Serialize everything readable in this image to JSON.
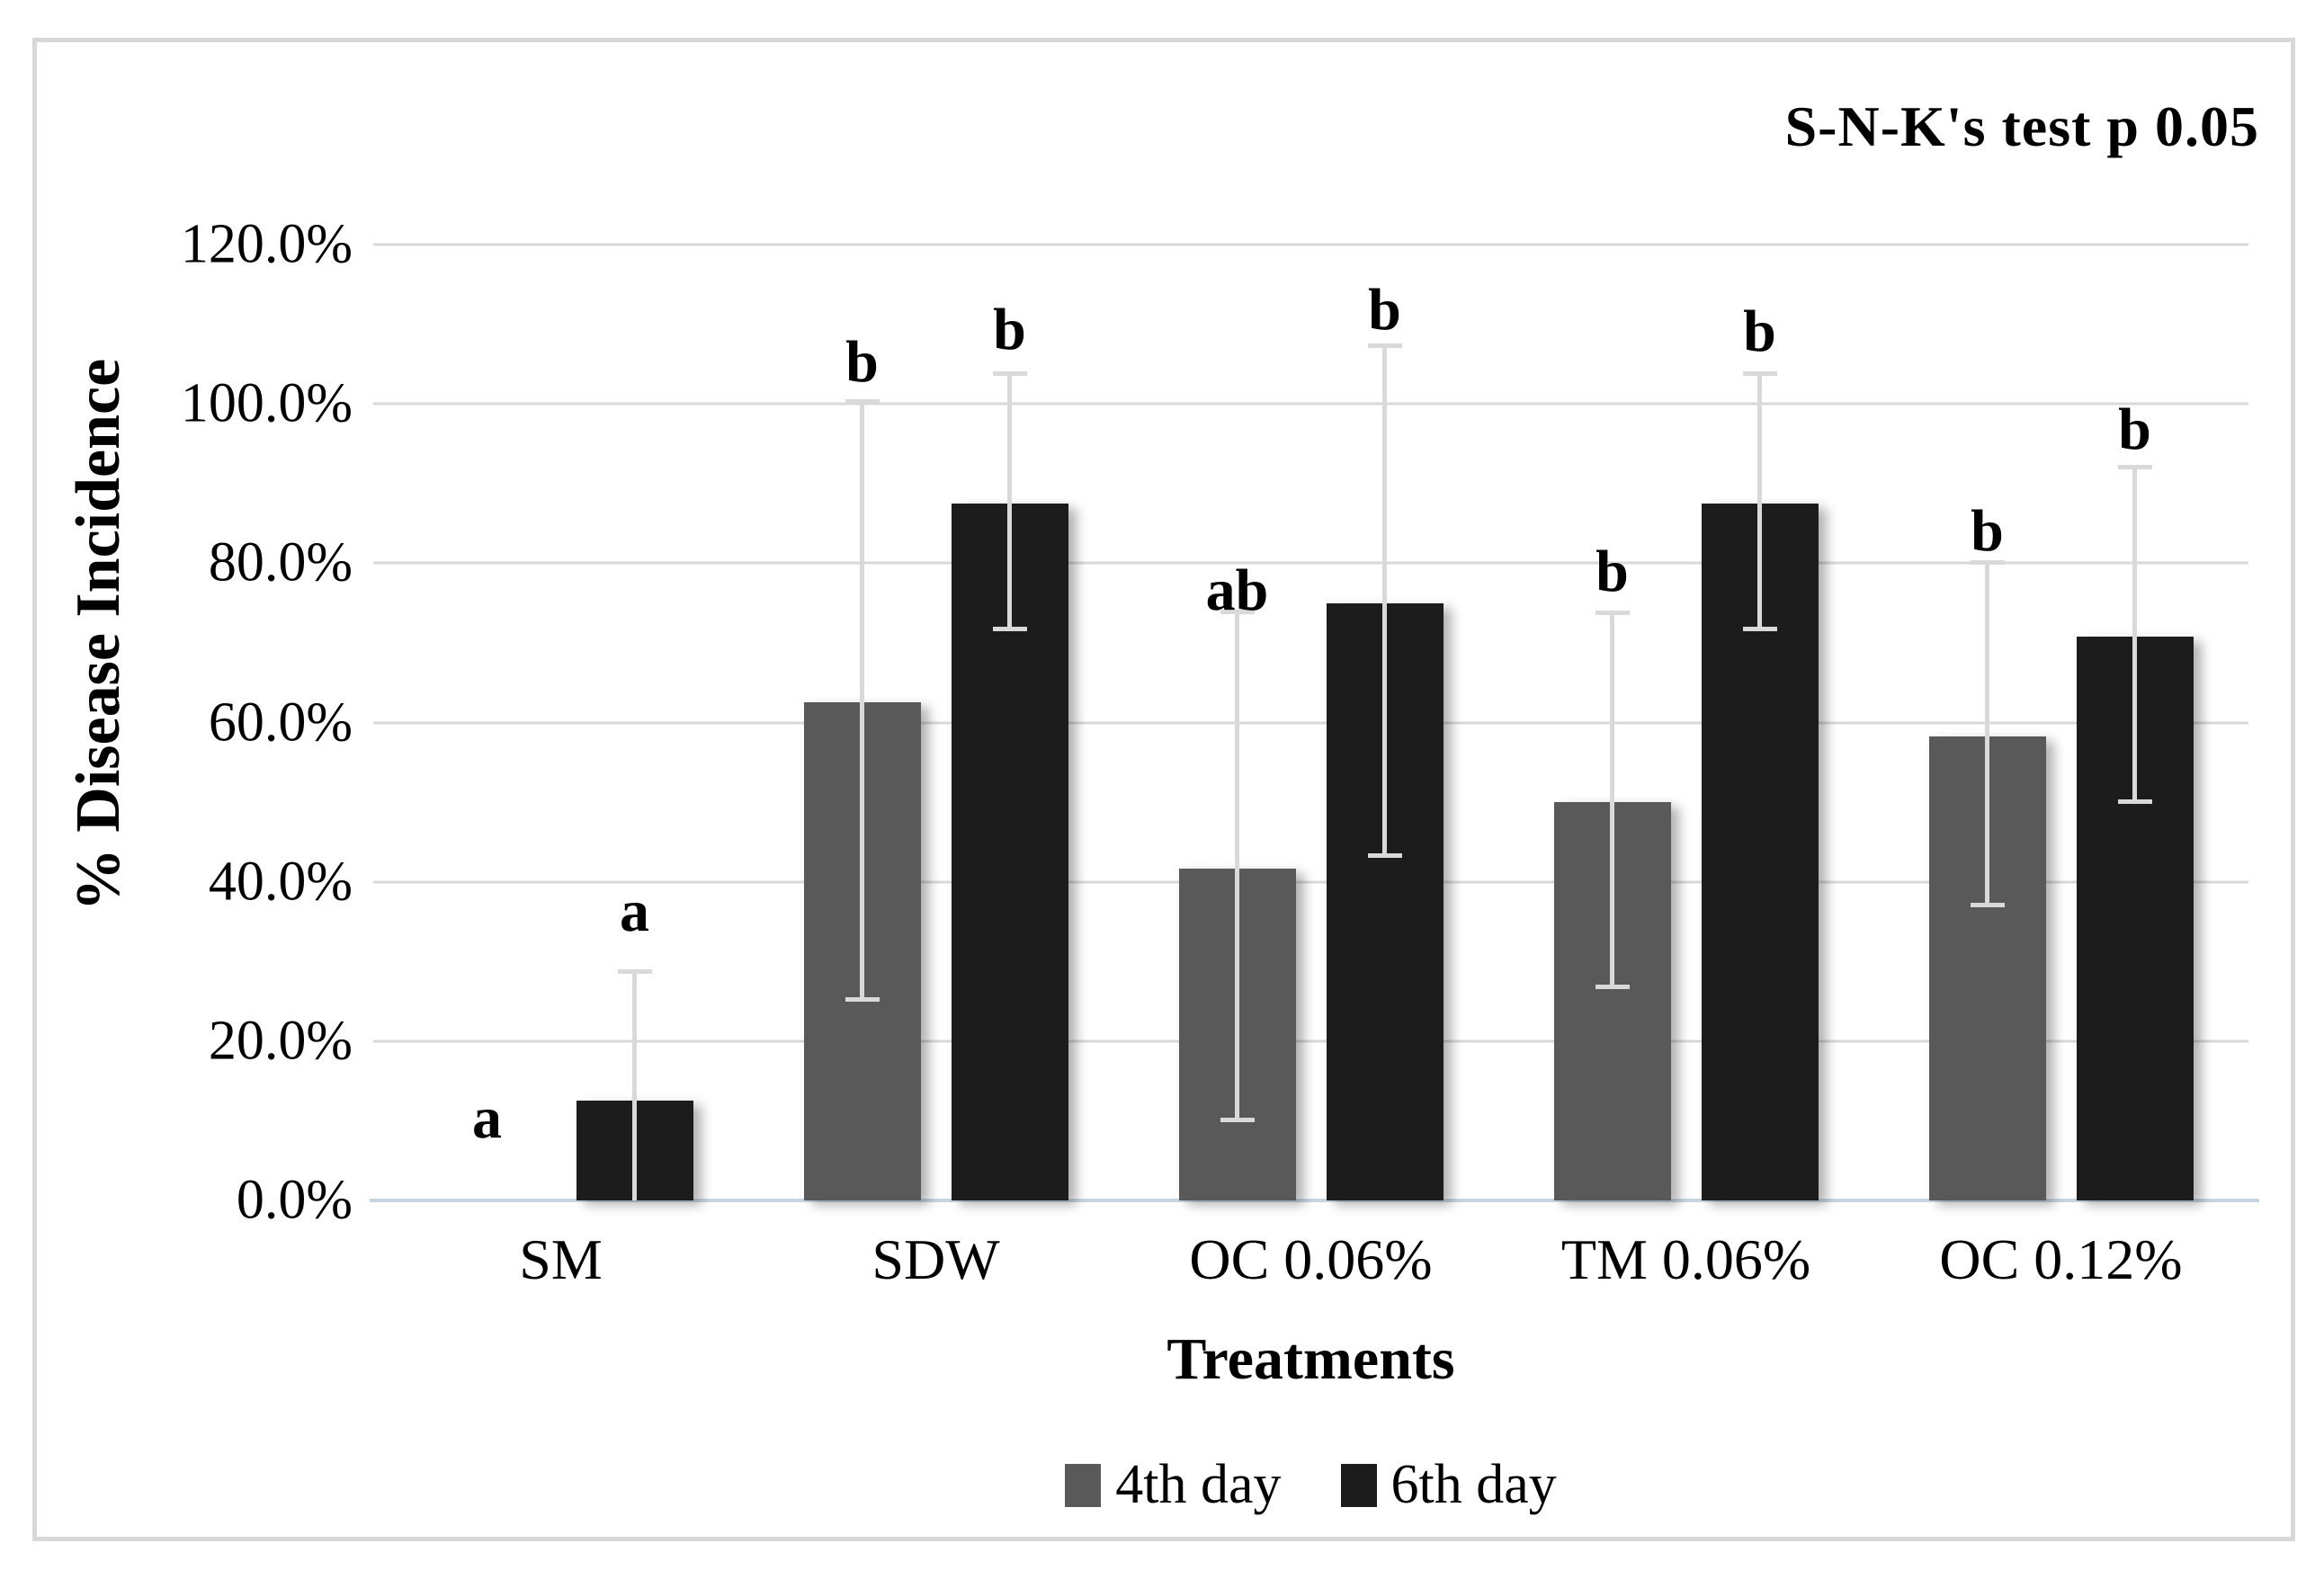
{
  "chart_data": {
    "type": "bar",
    "title": "S-N-K's test p 0.05",
    "xlabel": "Treatments",
    "ylabel": "% Disease Incidence",
    "categories": [
      "SM",
      "SDW",
      "OC 0.06%",
      "TM 0.06%",
      "OC 0.12%"
    ],
    "series": [
      {
        "name": "4th day",
        "color": "#595959",
        "values": [
          0,
          62.5,
          41.7,
          50,
          58.3
        ],
        "error_low": [
          null,
          25,
          9.8,
          26.5,
          36.8
        ],
        "error_high": [
          null,
          100,
          73.6,
          73.5,
          79.8
        ],
        "letters": [
          "a",
          "b",
          "ab",
          "b",
          "b"
        ],
        "letter_bottom": [
          6.5,
          101.5,
          72.8,
          75.2,
          80.3
        ]
      },
      {
        "name": "6th day",
        "color": "#1c1c1c",
        "values": [
          12.5,
          87.5,
          75,
          87.5,
          70.8
        ],
        "error_low": [
          0,
          71.5,
          43,
          71.5,
          49.8
        ],
        "error_high": [
          28.5,
          103.5,
          107,
          103.5,
          91.8
        ],
        "letters": [
          "a",
          "b",
          "b",
          "b",
          "b"
        ],
        "letter_bottom": [
          32.5,
          105.5,
          108,
          105.3,
          93
        ]
      }
    ],
    "ylim": [
      0,
      120
    ],
    "ytick_step": 20,
    "yticks": [
      "0.0%",
      "20.0%",
      "40.0%",
      "60.0%",
      "80.0%",
      "100.0%",
      "120.0%"
    ],
    "grid": true,
    "legend_position": "bottom"
  },
  "colors": {
    "bar_4th_day": "#595959",
    "bar_6th_day": "#1c1c1c",
    "gridline": "#d9d9d9",
    "baseline": "#c6d5e2",
    "error_bar": "#d9d9d9",
    "frame_border": "#d7d7d7",
    "text": "#000000"
  }
}
